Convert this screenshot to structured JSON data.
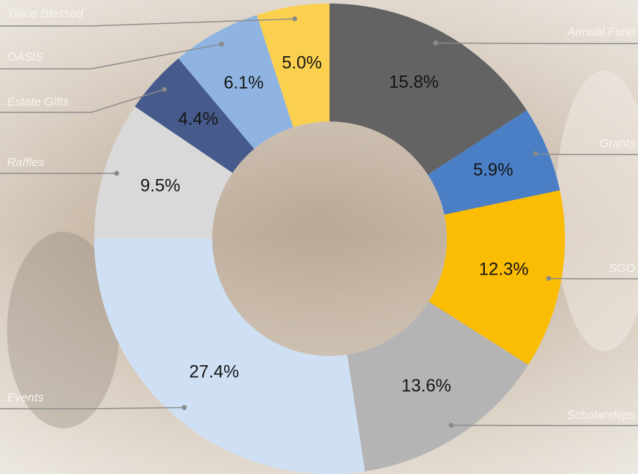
{
  "chart_data": {
    "type": "pie",
    "categories": [
      "Annual Fund",
      "Grants",
      "SGO",
      "Scholarships",
      "Events",
      "Raffles",
      "Estate Gifts",
      "OASIS",
      "Twice Blessed"
    ],
    "values": [
      15.8,
      5.9,
      12.3,
      13.6,
      27.4,
      9.5,
      4.4,
      6.1,
      5.0
    ],
    "value_labels": [
      "15.8%",
      "5.9%",
      "12.3%",
      "13.6%",
      "27.4%",
      "9.5%",
      "4.4%",
      "6.1%",
      "5.0%"
    ],
    "colors": [
      "#636363",
      "#4a7fc5",
      "#fbbc04",
      "#b4b4b4",
      "#cfe0f4",
      "#d9d9d9",
      "#465b8c",
      "#8fb4e2",
      "#fcd04f"
    ]
  }
}
